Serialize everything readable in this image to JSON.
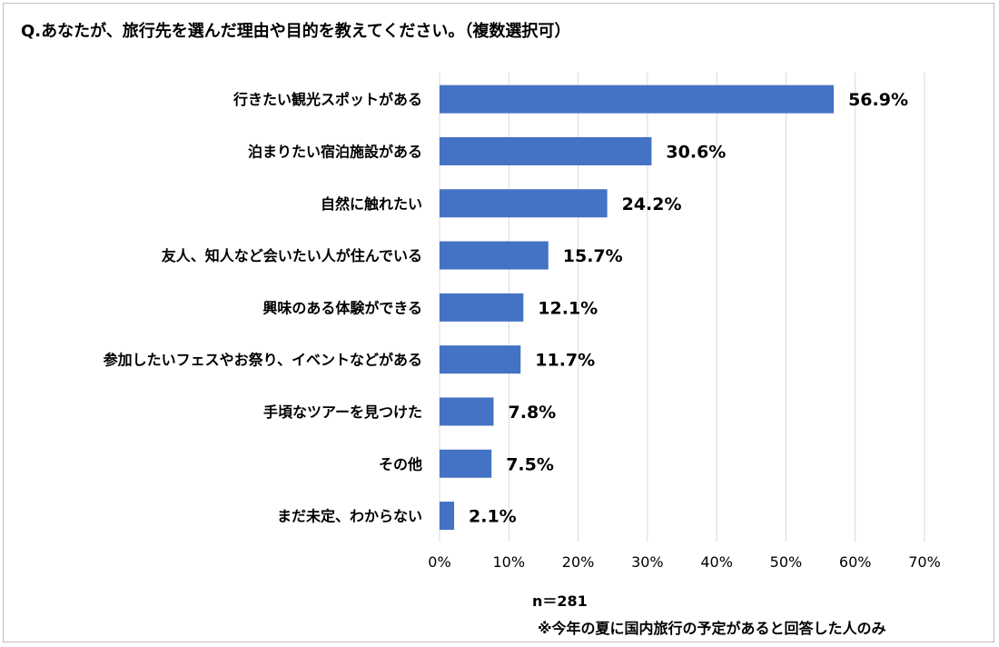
{
  "title": "Q.あなたが、旅行先を選んだ理由や目的を教えてください。（複数選択可）",
  "sample_note": "n＝281",
  "footnote": "※今年の夏に国内旅行の予定があると回答した人のみ",
  "colors": {
    "bar": "#4472c4",
    "grid": "#d9d9d9",
    "text": "#000000"
  },
  "chart_data": {
    "type": "bar",
    "orientation": "horizontal",
    "title": "Q.あなたが、旅行先を選んだ理由や目的を教えてください。（複数選択可）",
    "xlabel": "",
    "ylabel": "",
    "categories": [
      "行きたい観光スポットがある",
      "泊まりたい宿泊施設がある",
      "自然に触れたい",
      "友人、知人など会いたい人が住んでいる",
      "興味のある体験ができる",
      "参加したいフェスやお祭り、イベントなどがある",
      "手頃なツアーを見つけた",
      "その他",
      "まだ未定、わからない"
    ],
    "values": [
      56.9,
      30.6,
      24.2,
      15.7,
      12.1,
      11.7,
      7.8,
      7.5,
      2.1
    ],
    "value_labels": [
      "56.9%",
      "30.6%",
      "24.2%",
      "15.7%",
      "12.1%",
      "11.7%",
      "7.8%",
      "7.5%",
      "2.1%"
    ],
    "xlim": [
      0,
      70
    ],
    "xticks": [
      0,
      10,
      20,
      30,
      40,
      50,
      60,
      70
    ],
    "xtick_labels": [
      "0%",
      "10%",
      "20%",
      "30%",
      "40%",
      "50%",
      "60%",
      "70%"
    ],
    "grid": true,
    "legend": "none"
  }
}
